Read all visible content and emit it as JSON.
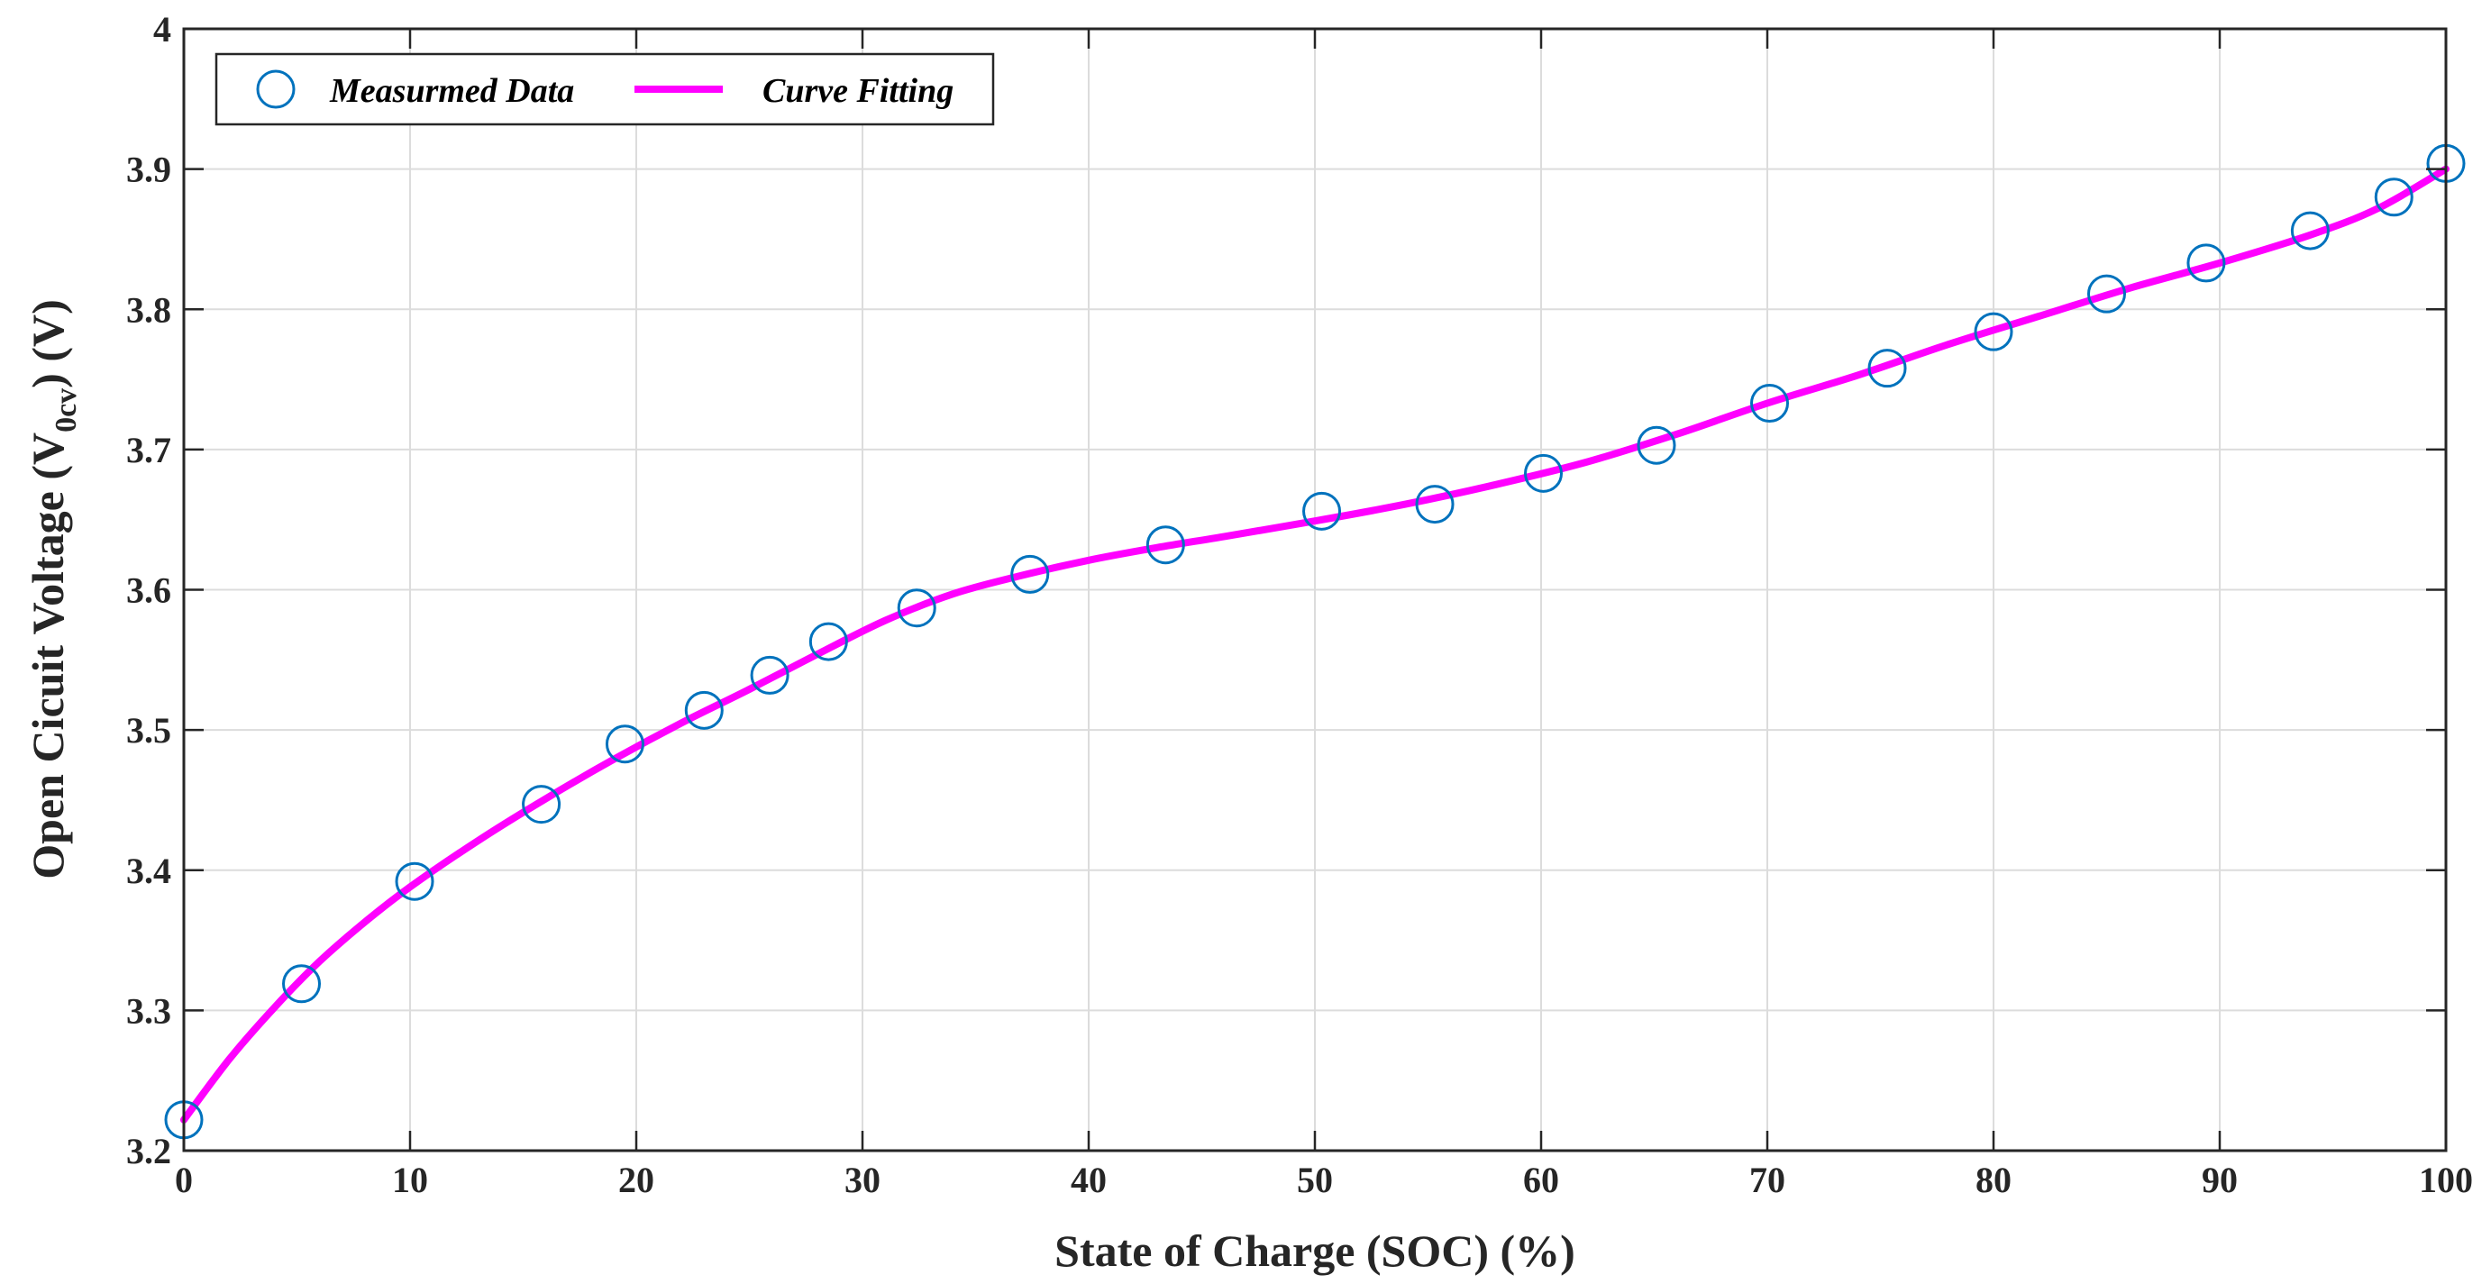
{
  "chart_data": {
    "type": "line",
    "title": "",
    "xlabel": "State of Charge (SOC) (%)",
    "ylabel_main": "Open Cicuit Voltage (V",
    "ylabel_sub": "0cv",
    "ylabel_end": ") (V)",
    "xlim": [
      0,
      100
    ],
    "ylim": [
      3.2,
      4.0
    ],
    "xticks": [
      0,
      10,
      20,
      30,
      40,
      50,
      60,
      70,
      80,
      90,
      100
    ],
    "yticks": [
      3.2,
      3.3,
      3.4,
      3.5,
      3.6,
      3.7,
      3.8,
      3.9,
      4.0
    ],
    "xtick_labels": [
      "0",
      "10",
      "20",
      "30",
      "40",
      "50",
      "60",
      "70",
      "80",
      "90",
      "100"
    ],
    "ytick_labels": [
      "3.2",
      "3.3",
      "3.4",
      "3.5",
      "3.6",
      "3.7",
      "3.8",
      "3.9",
      "4"
    ],
    "grid": true,
    "legend_position": "top-left",
    "series": [
      {
        "name": "Measurmed Data",
        "style": "markers",
        "marker": "circle-open",
        "color": "#0072bd",
        "x": [
          0,
          5.2,
          10.2,
          15.8,
          19.5,
          23.0,
          25.9,
          28.5,
          32.4,
          37.4,
          43.4,
          50.3,
          55.3,
          60.1,
          65.1,
          70.1,
          75.3,
          80.0,
          85.0,
          89.4,
          94.0,
          97.7,
          100
        ],
        "y": [
          3.222,
          3.319,
          3.392,
          3.447,
          3.49,
          3.514,
          3.539,
          3.563,
          3.587,
          3.611,
          3.632,
          3.656,
          3.661,
          3.683,
          3.703,
          3.733,
          3.758,
          3.784,
          3.811,
          3.833,
          3.856,
          3.88,
          3.904
        ]
      },
      {
        "name": "Curve Fitting",
        "style": "line",
        "color": "#ff00ff",
        "x": [
          0,
          2,
          4,
          6,
          8,
          10,
          13,
          16,
          19,
          22,
          25,
          28,
          31,
          34,
          37,
          40,
          43,
          46,
          50,
          54,
          58,
          62,
          66,
          70,
          74,
          78,
          82,
          86,
          90,
          94,
          97,
          100
        ],
        "y": [
          3.222,
          3.265,
          3.302,
          3.335,
          3.363,
          3.388,
          3.421,
          3.451,
          3.479,
          3.505,
          3.529,
          3.554,
          3.578,
          3.597,
          3.61,
          3.621,
          3.63,
          3.638,
          3.649,
          3.661,
          3.675,
          3.691,
          3.711,
          3.733,
          3.753,
          3.775,
          3.795,
          3.815,
          3.833,
          3.853,
          3.872,
          3.9
        ]
      }
    ]
  }
}
